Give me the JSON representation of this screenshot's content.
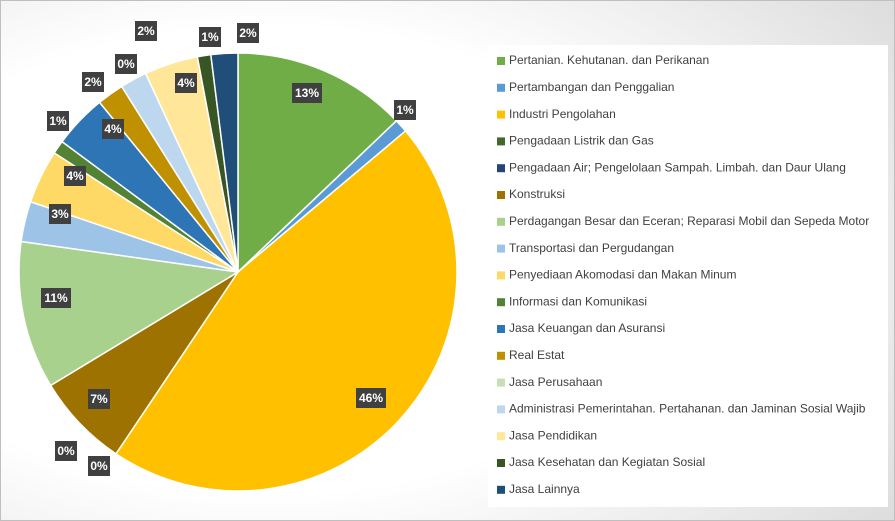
{
  "chart_data": {
    "type": "pie",
    "categories": [
      "Pertanian. Kehutanan. dan Perikanan",
      "Pertambangan dan Penggalian",
      "Industri Pengolahan",
      "Pengadaan Listrik dan Gas",
      "Pengadaan Air; Pengelolaan Sampah. Limbah. dan Daur Ulang",
      "Konstruksi",
      "Perdagangan Besar dan Eceran; Reparasi Mobil dan Sepeda Motor",
      "Transportasi dan Pergudangan",
      "Penyediaan Akomodasi dan Makan Minum",
      "Informasi dan Komunikasi",
      "Jasa Keuangan dan Asuransi",
      "Real Estat",
      "Jasa Perusahaan",
      "Administrasi Pemerintahan. Pertahanan. dan Jaminan Sosial Wajib",
      "Jasa Pendidikan",
      "Jasa Kesehatan dan Kegiatan Sosial",
      "Jasa Lainnya"
    ],
    "values": [
      13,
      1,
      46,
      0,
      0,
      7,
      11,
      3,
      4,
      1,
      4,
      2,
      0,
      2,
      4,
      1,
      2
    ],
    "value_labels": [
      "13%",
      "1%",
      "46%",
      "0%",
      "0%",
      "7%",
      "11%",
      "3%",
      "4%",
      "1%",
      "4%",
      "2%",
      "0%",
      "2%",
      "4%",
      "1%",
      "2%"
    ],
    "colors": [
      "#70ad47",
      "#5b9bd5",
      "#ffc000",
      "#43682b",
      "#264478",
      "#9e7200",
      "#a9d18e",
      "#9dc3e6",
      "#ffd966",
      "#548235",
      "#2e75b6",
      "#bf9000",
      "#c5e0b4",
      "#bdd7ee",
      "#ffe699",
      "#375623",
      "#1f4e79"
    ],
    "legend": "right"
  }
}
